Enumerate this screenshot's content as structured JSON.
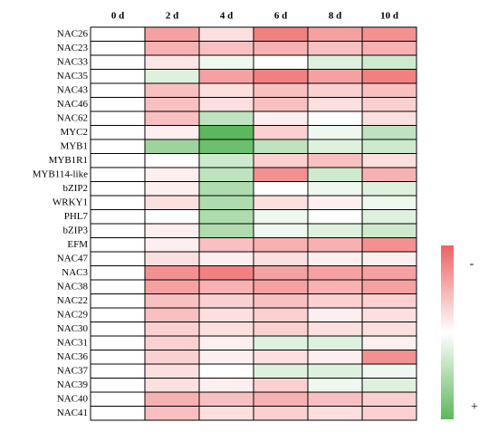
{
  "chart_data": {
    "type": "heatmap",
    "columns": [
      "0 d",
      "2 d",
      "4 d",
      "6 d",
      "8 d",
      "10 d"
    ],
    "rows": [
      "NAC26",
      "NAC23",
      "NAC33",
      "NAC35",
      "NAC43",
      "NAC46",
      "NAC62",
      "MYC2",
      "MYB1",
      "MYB1R1",
      "MYB114-like",
      "bZIP2",
      "WRKY1",
      "PHL7",
      "bZIP3",
      "EFM",
      "NAC47",
      "NAC3",
      "NAC38",
      "NAC22",
      "NAC29",
      "NAC30",
      "NAC31",
      "NAC36",
      "NAC37",
      "NAC39",
      "NAC40",
      "NAC41"
    ],
    "values": [
      [
        0,
        0.6,
        0.2,
        0.8,
        0.6,
        0.7
      ],
      [
        0,
        0.5,
        0.4,
        0.5,
        0.4,
        0.5
      ],
      [
        0,
        0.15,
        -0.1,
        0,
        -0.2,
        -0.3
      ],
      [
        0,
        -0.2,
        0.6,
        0.8,
        0.6,
        0.8
      ],
      [
        0,
        0.4,
        0.2,
        0.4,
        0.3,
        0.4
      ],
      [
        0,
        0.4,
        0.2,
        0.4,
        0.2,
        0.3
      ],
      [
        0,
        0.4,
        -0.4,
        0.1,
        0,
        0.2
      ],
      [
        0,
        0.1,
        -1,
        0.3,
        -0.1,
        -0.4
      ],
      [
        0,
        -0.6,
        -0.9,
        -0.4,
        -0.2,
        -0.3
      ],
      [
        0,
        0,
        -0.3,
        0.3,
        0.4,
        0.2
      ],
      [
        0,
        0.1,
        -0.4,
        0.7,
        -0.3,
        0.5
      ],
      [
        0,
        0.1,
        -0.5,
        0,
        -0.1,
        -0.2
      ],
      [
        0,
        0.2,
        -0.5,
        0.2,
        0.1,
        -0.1
      ],
      [
        0,
        0,
        -0.5,
        -0.1,
        0,
        -0.2
      ],
      [
        0,
        0.1,
        -0.5,
        -0.1,
        -0.2,
        -0.3
      ],
      [
        0,
        0.1,
        0.4,
        0.5,
        0.5,
        0.7
      ],
      [
        0,
        0.2,
        0.1,
        0.2,
        0.1,
        0.1
      ],
      [
        0,
        0.7,
        0.8,
        0.6,
        0.6,
        0.6
      ],
      [
        0,
        0.6,
        0.5,
        0.6,
        0.5,
        0.6
      ],
      [
        0,
        0.4,
        0.3,
        0.4,
        0.3,
        0.3
      ],
      [
        0,
        0.4,
        0.2,
        0.3,
        0.1,
        0.2
      ],
      [
        0,
        0.3,
        0.2,
        0.3,
        0.2,
        0.2
      ],
      [
        0,
        0.3,
        0.1,
        -0.2,
        -0.2,
        0.1
      ],
      [
        0,
        0.3,
        0.1,
        0.2,
        0.1,
        0.7
      ],
      [
        0,
        0.2,
        0,
        -0.2,
        -0.2,
        -0.1
      ],
      [
        0,
        0.2,
        0.1,
        0.3,
        -0.1,
        -0.2
      ],
      [
        0,
        0.5,
        0.4,
        0.5,
        0.4,
        0.3
      ],
      [
        0,
        0.4,
        0.2,
        0.3,
        0.2,
        0.3
      ]
    ],
    "zlim": [
      -1,
      1
    ],
    "colors": {
      "low": "#5cb85c",
      "mid": "#ffffff",
      "high": "#ee6262"
    },
    "legend_labels": {
      "high": "-",
      "low": "+"
    }
  }
}
